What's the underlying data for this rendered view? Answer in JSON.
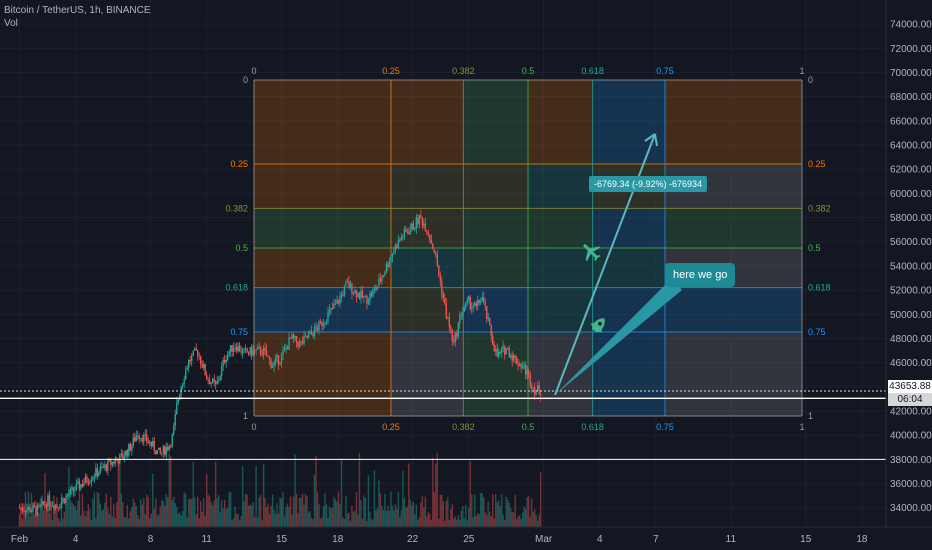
{
  "header": {
    "symbol_line": "Bitcoin / TetherUS, 1h, BINANCE",
    "volume_label": "Vol"
  },
  "price_tag": {
    "price": "43653.88",
    "countdown": "06:04"
  },
  "annotations": {
    "measure_label": "-6769.34 (-9.92%) -676934",
    "callout_text": "here we go",
    "icons": [
      "airplane-icon",
      "rocket-icon"
    ]
  },
  "fib_levels": {
    "horizontal": [
      "0",
      "0.25",
      "0.382",
      "0.5",
      "0.618",
      "0.75",
      "1"
    ],
    "vertical": [
      "0",
      "0.25",
      "0.382",
      "0.5",
      "0.618",
      "0.75",
      "1"
    ]
  },
  "colors": {
    "background": "#131722",
    "candle_up": "#26a69a",
    "candle_down": "#ef5350",
    "fib_orange": "#f57c00",
    "fib_olive": "#8c8c3a",
    "fib_green": "#4caf50",
    "fib_teal": "#26a69a",
    "fib_blue": "#2196f3",
    "fib_grey": "#9e9e9e",
    "accent": "#2a97a4"
  },
  "chart_data": {
    "type": "candlestick",
    "title": "Bitcoin / TetherUS, 1h, BINANCE",
    "y_ticks": [
      34000,
      36000,
      38000,
      40000,
      42000,
      44000,
      46000,
      48000,
      50000,
      52000,
      54000,
      56000,
      58000,
      60000,
      62000,
      64000,
      66000,
      68000,
      70000,
      72000,
      74000
    ],
    "y_tick_labels": [
      "34000.00",
      "36000.00",
      "38000.00",
      "40000.00",
      "42000.00",
      "44000.00",
      "46000.00",
      "48000.00",
      "50000.00",
      "52000.00",
      "54000.00",
      "56000.00",
      "58000.00",
      "60000.00",
      "62000.00",
      "64000.00",
      "66000.00",
      "68000.00",
      "70000.00",
      "72000.00",
      "74000.00"
    ],
    "ylim": [
      32800,
      74400
    ],
    "x_ticks": [
      "Feb",
      "4",
      "8",
      "11",
      "15",
      "18",
      "22",
      "25",
      "Mar",
      "4",
      "7",
      "11",
      "15",
      "18"
    ],
    "x_tick_days": [
      0,
      3,
      7,
      10,
      14,
      17,
      21,
      24,
      28,
      31,
      34,
      38,
      42,
      45
    ],
    "xlim_days": [
      -0.4,
      46.3
    ],
    "last_day": 27.9,
    "horizontal_lines": [
      43653.88,
      43050,
      38000
    ],
    "price_path": [
      [
        0,
        34000
      ],
      [
        1,
        33800
      ],
      [
        1.5,
        34600
      ],
      [
        2,
        34200
      ],
      [
        3,
        35600
      ],
      [
        4,
        36800
      ],
      [
        5,
        37800
      ],
      [
        5.5,
        38200
      ],
      [
        6,
        39200
      ],
      [
        6.3,
        40200
      ],
      [
        7,
        39300
      ],
      [
        7.5,
        38400
      ],
      [
        8,
        39200
      ],
      [
        8.2,
        40000
      ],
      [
        8.4,
        42400
      ],
      [
        8.6,
        44000
      ],
      [
        9,
        46000
      ],
      [
        9.5,
        47000
      ],
      [
        10,
        44800
      ],
      [
        10.5,
        44000
      ],
      [
        11,
        46500
      ],
      [
        11.5,
        47500
      ],
      [
        12,
        46800
      ],
      [
        13,
        47000
      ],
      [
        13.5,
        45800
      ],
      [
        14,
        46500
      ],
      [
        14.5,
        48000
      ],
      [
        15,
        47500
      ],
      [
        16,
        49000
      ],
      [
        17,
        51000
      ],
      [
        17.5,
        52500
      ],
      [
        18,
        51800
      ],
      [
        18.5,
        51200
      ],
      [
        19,
        52000
      ],
      [
        19.5,
        53600
      ],
      [
        20,
        55400
      ],
      [
        20.5,
        56600
      ],
      [
        21,
        57200
      ],
      [
        21.4,
        58000
      ],
      [
        21.8,
        57000
      ],
      [
        22.2,
        55000
      ],
      [
        22.5,
        52500
      ],
      [
        22.8,
        50000
      ],
      [
        23.2,
        47500
      ],
      [
        23.6,
        50200
      ],
      [
        24,
        51000
      ],
      [
        24.4,
        50500
      ],
      [
        24.7,
        51500
      ],
      [
        25,
        49500
      ],
      [
        25.5,
        46500
      ],
      [
        26,
        47200
      ],
      [
        26.5,
        46200
      ],
      [
        27,
        45500
      ],
      [
        27.5,
        43800
      ],
      [
        27.9,
        43650
      ]
    ],
    "volume_base": 34000
  }
}
